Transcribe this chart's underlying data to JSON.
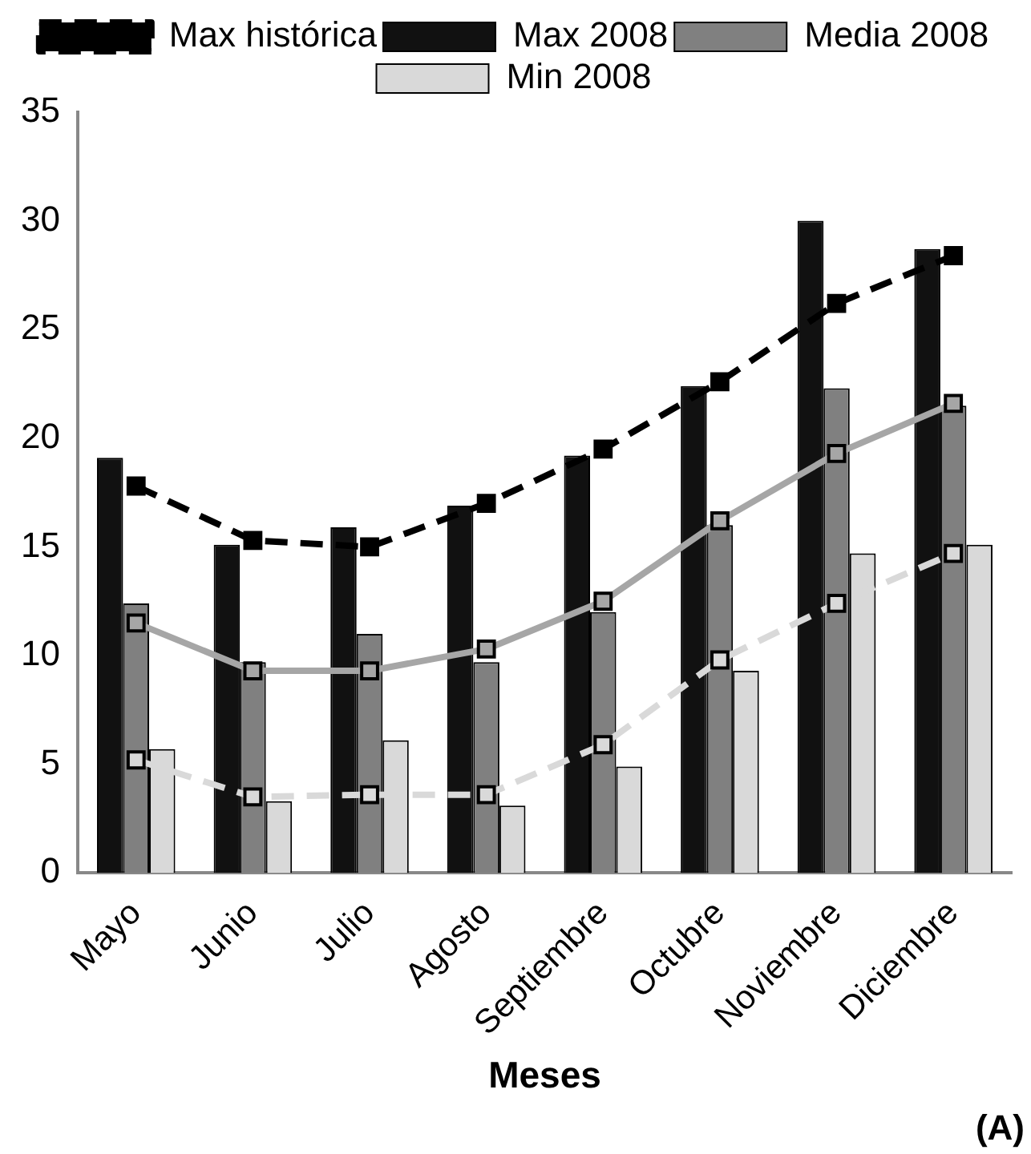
{
  "chart_data": {
    "type": "bar",
    "xlabel": "Meses",
    "categories": [
      "Mayo",
      "Junio",
      "Julio",
      "Agosto",
      "Septiembre",
      "Octubre",
      "Noviembre",
      "Diciembre"
    ],
    "series": [
      {
        "name": "Max 2008",
        "color": "#111111",
        "values": [
          19.1,
          15.1,
          15.9,
          16.9,
          19.2,
          22.4,
          30.0,
          28.7
        ]
      },
      {
        "name": "Media 2008",
        "color": "#808080",
        "values": [
          12.4,
          9.7,
          11.0,
          9.7,
          12.0,
          16.0,
          22.3,
          21.5
        ]
      },
      {
        "name": "Min 2008",
        "color": "#d9d9d9",
        "values": [
          5.7,
          3.3,
          6.1,
          3.1,
          4.9,
          9.3,
          14.7,
          15.1
        ]
      },
      {
        "name": "Max histórica",
        "type": "line",
        "color": "#000000",
        "marker": "square",
        "line_style": "dashed",
        "values": [
          17.8,
          15.3,
          15.0,
          17.0,
          19.5,
          22.6,
          26.2,
          28.4
        ]
      },
      {
        "type": "line",
        "color": "#a6a6a6",
        "marker": "square",
        "line_style": "solid",
        "values": [
          11.5,
          9.3,
          9.3,
          10.3,
          12.5,
          16.2,
          19.3,
          21.6
        ]
      },
      {
        "type": "line",
        "color": "#d9d9d9",
        "marker": "square",
        "line_style": "dashed",
        "values": [
          5.2,
          3.5,
          3.6,
          3.6,
          5.9,
          9.8,
          12.4,
          14.7
        ]
      }
    ],
    "ylim": [
      0,
      35
    ],
    "yticks": [
      0,
      5,
      10,
      15,
      20,
      25,
      30,
      35
    ],
    "grid": false,
    "legend": "top",
    "annotations": [
      "(A)"
    ]
  }
}
